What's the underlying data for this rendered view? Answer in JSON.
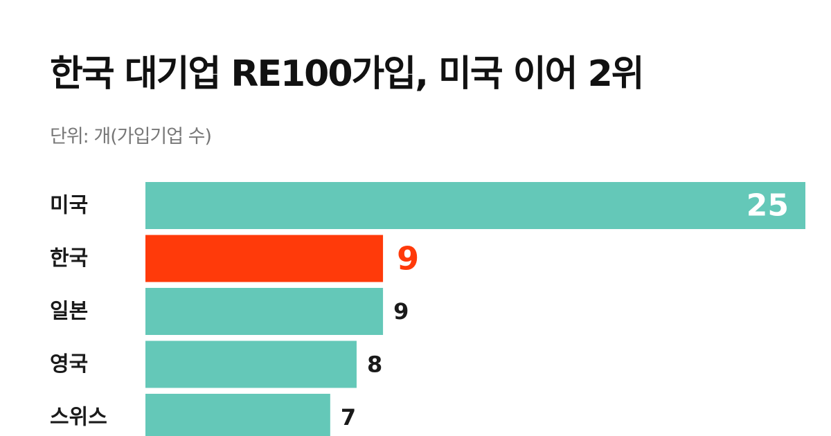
{
  "chart_data": {
    "type": "bar",
    "orientation": "horizontal",
    "title": "한국 대기업 RE100가입, 미국 이어 2위",
    "subtitle": "단위: 개(가입기업 수)",
    "categories": [
      "미국",
      "한국",
      "일본",
      "영국",
      "스위스"
    ],
    "values": [
      25,
      9,
      9,
      8,
      7
    ],
    "highlight": "한국",
    "value_label_position": {
      "미국": "inside",
      "한국": "outside",
      "일본": "outside",
      "영국": "outside",
      "스위스": "outside"
    },
    "xlim": [
      0,
      25
    ],
    "grid": false,
    "legend": "none"
  },
  "colors": {
    "bar": "#64c8b8",
    "highlight_bar": "#ff3a0a",
    "highlight_text": "#ff3a0a",
    "label_text": "#1a1a1a",
    "inside_label_text": "#ffffff",
    "title_text": "#111111",
    "subtitle_text": "#777777"
  }
}
